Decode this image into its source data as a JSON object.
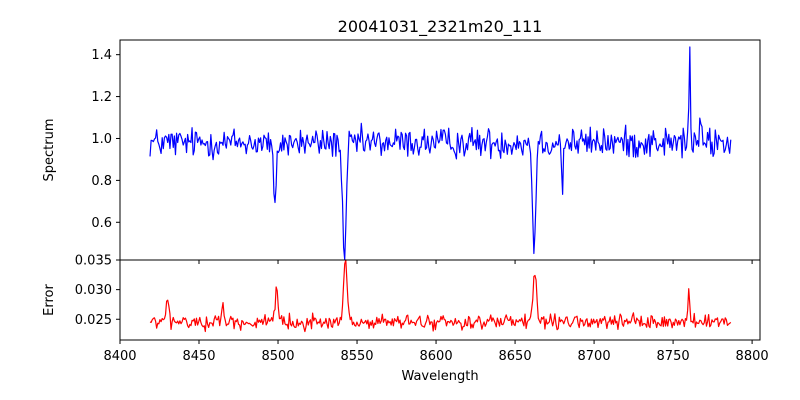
{
  "chart_data": {
    "title": "20041031_2321m20_111",
    "xlabel": "Wavelength",
    "x_range": [
      8419,
      8787
    ],
    "xlim": [
      8400,
      8805
    ],
    "x_ticks": [
      "8400",
      "8450",
      "8500",
      "8550",
      "8600",
      "8650",
      "8700",
      "8750",
      "8800"
    ],
    "panels": [
      {
        "name": "spectrum",
        "ylabel": "Spectrum",
        "ylim": [
          0.42,
          1.47
        ],
        "y_ticks": [
          "0.6",
          "0.8",
          "1.0",
          "1.2",
          "1.4"
        ],
        "color": "#0000ff",
        "baseline": 0.98,
        "noise": 0.055,
        "features": [
          {
            "center": 8498.0,
            "depth": -0.33,
            "width": 0.9
          },
          {
            "center": 8542.0,
            "depth": -0.62,
            "width": 1.1
          },
          {
            "center": 8662.0,
            "depth": -0.5,
            "width": 1.0
          },
          {
            "center": 8680.0,
            "depth": -0.2,
            "width": 0.5
          },
          {
            "center": 8760.5,
            "depth": 0.43,
            "width": 0.45
          },
          {
            "center": 8767.0,
            "depth": 0.1,
            "width": 0.5
          }
        ]
      },
      {
        "name": "error",
        "ylabel": "Error",
        "ylim": [
          0.0215,
          0.035
        ],
        "y_ticks": [
          "0.025",
          "0.030",
          "0.035"
        ],
        "color": "#ff0000",
        "baseline": 0.0245,
        "noise": 0.0009,
        "features": [
          {
            "center": 8430.0,
            "depth": 0.004,
            "width": 0.8
          },
          {
            "center": 8465.0,
            "depth": 0.003,
            "width": 0.8
          },
          {
            "center": 8499.0,
            "depth": 0.0055,
            "width": 0.7
          },
          {
            "center": 8542.5,
            "depth": 0.01,
            "width": 1.2
          },
          {
            "center": 8662.5,
            "depth": 0.0075,
            "width": 1.2
          },
          {
            "center": 8760.0,
            "depth": 0.0055,
            "width": 0.6
          }
        ]
      }
    ]
  }
}
